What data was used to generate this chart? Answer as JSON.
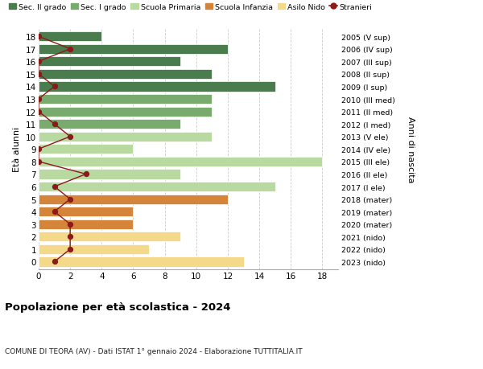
{
  "ages": [
    18,
    17,
    16,
    15,
    14,
    13,
    12,
    11,
    10,
    9,
    8,
    7,
    6,
    5,
    4,
    3,
    2,
    1,
    0
  ],
  "years": [
    "2005 (V sup)",
    "2006 (IV sup)",
    "2007 (III sup)",
    "2008 (II sup)",
    "2009 (I sup)",
    "2010 (III med)",
    "2011 (II med)",
    "2012 (I med)",
    "2013 (V ele)",
    "2014 (IV ele)",
    "2015 (III ele)",
    "2016 (II ele)",
    "2017 (I ele)",
    "2018 (mater)",
    "2019 (mater)",
    "2020 (mater)",
    "2021 (nido)",
    "2022 (nido)",
    "2023 (nido)"
  ],
  "bar_values": [
    4,
    12,
    9,
    11,
    15,
    11,
    11,
    9,
    11,
    6,
    18,
    9,
    15,
    12,
    6,
    6,
    9,
    7,
    13
  ],
  "bar_colors": [
    "#4a7c4e",
    "#4a7c4e",
    "#4a7c4e",
    "#4a7c4e",
    "#4a7c4e",
    "#7aab6e",
    "#7aab6e",
    "#7aab6e",
    "#b8d9a0",
    "#b8d9a0",
    "#b8d9a0",
    "#b8d9a0",
    "#b8d9a0",
    "#d4853a",
    "#d4853a",
    "#d4853a",
    "#f5d98b",
    "#f5d98b",
    "#f5d98b"
  ],
  "stranieri_values": [
    0,
    2,
    0,
    0,
    1,
    0,
    0,
    1,
    2,
    0,
    0,
    3,
    1,
    2,
    1,
    2,
    2,
    2,
    1
  ],
  "stranieri_color": "#8b1a1a",
  "legend_labels": [
    "Sec. II grado",
    "Sec. I grado",
    "Scuola Primaria",
    "Scuola Infanzia",
    "Asilo Nido",
    "Stranieri"
  ],
  "legend_colors": [
    "#4a7c4e",
    "#7aab6e",
    "#b8d9a0",
    "#d4853a",
    "#f5d98b",
    "#8b1a1a"
  ],
  "title": "Popolazione per età scolastica - 2024",
  "subtitle": "COMUNE DI TEORA (AV) - Dati ISTAT 1° gennaio 2024 - Elaborazione TUTTITALIA.IT",
  "ylabel_left": "Età alunni",
  "ylabel_right": "Anni di nascita",
  "xlim": [
    0,
    19
  ],
  "xticks": [
    0,
    2,
    4,
    6,
    8,
    10,
    12,
    14,
    16,
    18
  ],
  "bg_color": "#ffffff",
  "grid_color": "#cccccc",
  "bar_height": 0.78
}
